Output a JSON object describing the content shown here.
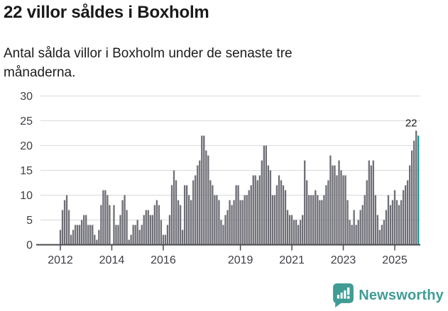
{
  "header": {
    "title": "22 villor såldes i Boxholm",
    "subtitle_lines": [
      "Antal sålda villor i Boxholm under de senaste tre",
      "månaderna."
    ]
  },
  "chart_data": {
    "type": "bar",
    "title": "22 villor såldes i Boxholm",
    "subtitle": "Antal sålda villor i Boxholm under de senaste tre månaderna.",
    "x_start_month": "2012-01",
    "x_frequency": "monthly",
    "values": [
      3,
      7,
      9,
      10,
      7,
      2,
      3,
      4,
      4,
      4,
      5,
      6,
      6,
      4,
      4,
      4,
      2,
      1,
      3,
      8,
      11,
      11,
      10,
      8,
      0,
      8,
      4,
      4,
      6,
      9,
      10,
      7,
      1,
      2,
      4,
      4,
      5,
      3,
      4,
      6,
      7,
      7,
      6,
      6,
      8,
      9,
      8,
      5,
      2,
      2,
      4,
      6,
      12,
      15,
      13,
      9,
      8,
      3,
      12,
      12,
      10,
      9,
      13,
      14,
      16,
      17,
      22,
      22,
      19,
      18,
      13,
      12,
      10,
      10,
      9,
      5,
      4,
      6,
      7,
      9,
      8,
      9,
      12,
      12,
      9,
      9,
      10,
      10,
      11,
      12,
      14,
      14,
      13,
      14,
      17,
      20,
      20,
      16,
      15,
      10,
      10,
      12,
      14,
      13,
      12,
      11,
      7,
      6,
      6,
      5,
      5,
      4,
      5,
      6,
      17,
      13,
      10,
      10,
      10,
      11,
      10,
      9,
      9,
      10,
      12,
      13,
      18,
      16,
      16,
      14,
      17,
      15,
      14,
      14,
      9,
      5,
      4,
      7,
      4,
      5,
      7,
      8,
      10,
      13,
      17,
      16,
      17,
      10,
      6,
      3,
      4,
      5,
      7,
      10,
      8,
      9,
      11,
      9,
      8,
      9,
      11,
      12,
      13,
      16,
      19,
      21,
      23,
      22
    ],
    "highlight_last_bar": true,
    "annotation": {
      "label": "22",
      "applies_to": "last-bar"
    },
    "ylim": [
      0,
      30
    ],
    "yticks": [
      0,
      5,
      10,
      15,
      20,
      25,
      30
    ],
    "xticks": [
      {
        "label": "2012",
        "month_index": 0
      },
      {
        "label": "2014",
        "month_index": 24
      },
      {
        "label": "2016",
        "month_index": 48
      },
      {
        "label": "2019",
        "month_index": 84
      },
      {
        "label": "2021",
        "month_index": 108
      },
      {
        "label": "2023",
        "month_index": 132
      },
      {
        "label": "2025",
        "month_index": 156
      }
    ],
    "grid": true,
    "legend": "none",
    "colors": {
      "bar": "#6e6e76",
      "highlight": "#179a96",
      "grid": "#d9d9de",
      "axis": "#4b4b52",
      "tick_label": "#3d3d45",
      "annotation_text": "#1a1a1a"
    }
  },
  "footer": {
    "logo_text": "Newsworthy",
    "logo_color": "#3f9c95",
    "logo_icon": "bar-chart-speech-bubble"
  }
}
